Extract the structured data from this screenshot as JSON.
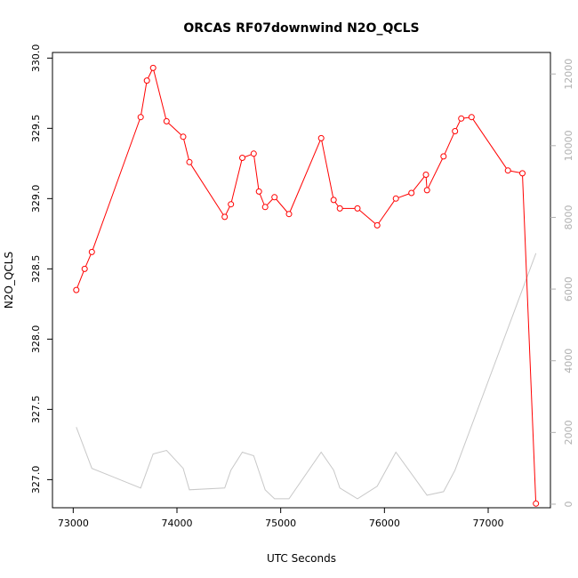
{
  "chart_data": {
    "type": "line",
    "title": "ORCAS RF07downwind N2O_QCLS",
    "xlabel": "UTC Seconds",
    "ylabel": "N2O_QCLS",
    "xlim": [
      72800,
      77600
    ],
    "ylim": [
      326.8,
      330.04
    ],
    "y2lim": [
      -100,
      12600
    ],
    "x_ticks": [
      73000,
      74000,
      75000,
      76000,
      77000
    ],
    "y_ticks": [
      "327.0",
      "327.5",
      "328.0",
      "328.5",
      "329.0",
      "329.5",
      "330.0"
    ],
    "y2_ticks": [
      0,
      2000,
      4000,
      6000,
      8000,
      10000,
      12000
    ],
    "grid": false,
    "colors": {
      "primary": "#ff0000",
      "secondary": "#c8c8c8"
    },
    "series": [
      {
        "axis": "left",
        "style": "line+points",
        "x": [
          73030,
          73110,
          73180,
          73650,
          73710,
          73770,
          73900,
          74060,
          74120,
          74460,
          74520,
          74630,
          74740,
          74790,
          74850,
          74940,
          75080,
          75390,
          75510,
          75570,
          75740,
          75930,
          76110,
          76260,
          76400,
          76410,
          76570,
          76680,
          76740,
          76840,
          77190,
          77330,
          77460
        ],
        "y": [
          328.35,
          328.5,
          328.62,
          329.58,
          329.84,
          329.93,
          329.55,
          329.44,
          329.26,
          328.87,
          328.96,
          329.29,
          329.32,
          329.05,
          328.94,
          329.01,
          328.89,
          329.43,
          328.99,
          328.93,
          328.93,
          328.81,
          329.0,
          329.04,
          329.17,
          329.06,
          329.3,
          329.48,
          329.57,
          329.58,
          329.2,
          329.18,
          326.83
        ]
      },
      {
        "axis": "right",
        "style": "line",
        "x": [
          73030,
          73180,
          73650,
          73770,
          73900,
          74060,
          74120,
          74460,
          74520,
          74630,
          74740,
          74850,
          74940,
          75080,
          75390,
          75510,
          75570,
          75740,
          75930,
          76110,
          76410,
          76570,
          76680,
          77460
        ],
        "y": [
          2150,
          1000,
          450,
          1400,
          1500,
          1000,
          400,
          450,
          950,
          1450,
          1350,
          400,
          150,
          150,
          1450,
          950,
          450,
          150,
          500,
          1450,
          250,
          350,
          950,
          7000
        ]
      }
    ]
  }
}
